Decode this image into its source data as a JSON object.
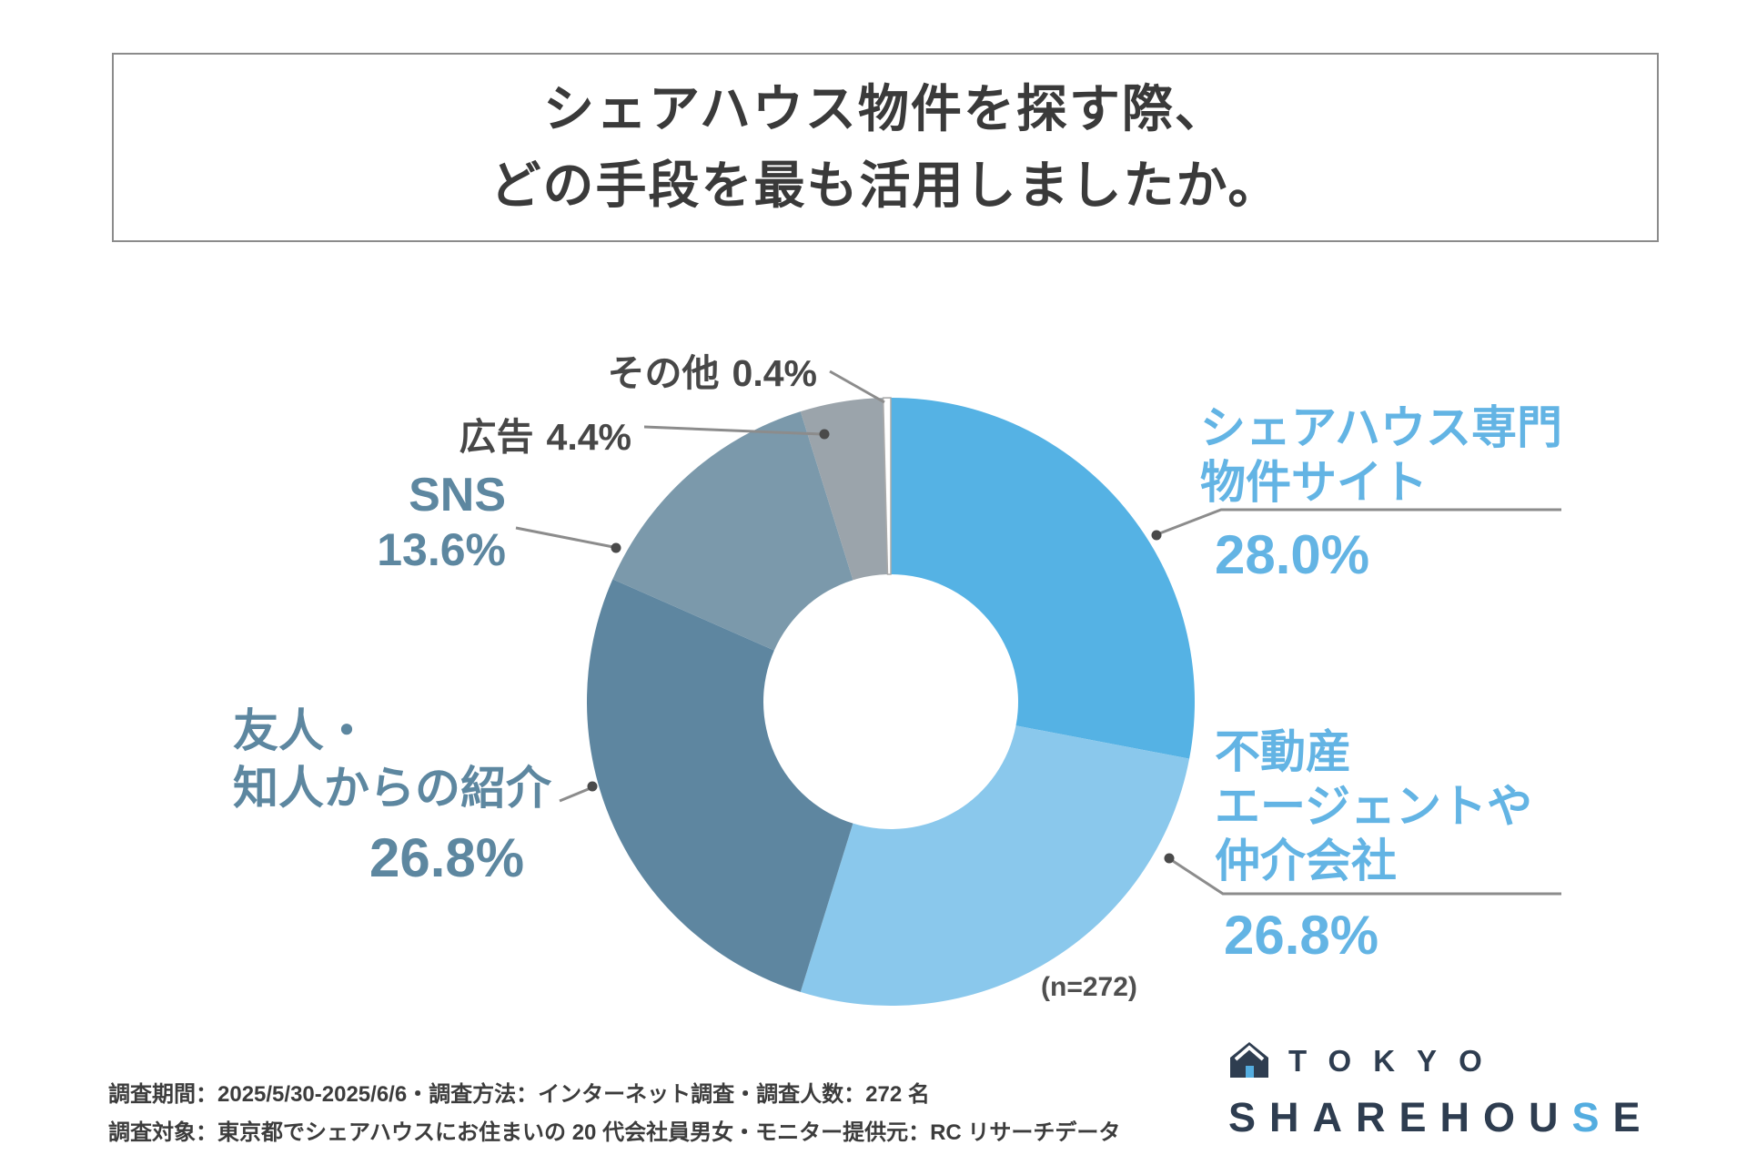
{
  "title": {
    "line1": "シェアハウス物件を探す際、",
    "line2": "どの手段を最も活用しましたか。"
  },
  "chart_data": {
    "type": "pie",
    "subtype": "donut",
    "title": "シェアハウス物件を探す際、どの手段を最も活用しましたか。",
    "unit": "%",
    "start_angle": "12-o-clock-clockwise",
    "sample_note": "(n=272)",
    "segments": [
      {
        "name": "シェアハウス専門物件サイト",
        "value": 28.0,
        "pct": "28.0%",
        "color": "#55b2e4",
        "label_lines": [
          "シェアハウス専門",
          "物件サイト"
        ]
      },
      {
        "name": "不動産エージェントや仲介会社",
        "value": 26.8,
        "pct": "26.8%",
        "color": "#8ac8ec",
        "label_lines": [
          "不動産",
          "エージェントや",
          "仲介会社"
        ]
      },
      {
        "name": "友人・知人からの紹介",
        "value": 26.8,
        "pct": "26.8%",
        "color": "#5e86a0",
        "label_lines": [
          "友人・",
          "知人からの紹介"
        ]
      },
      {
        "name": "SNS",
        "value": 13.6,
        "pct": "13.6%",
        "color": "#7b99ab",
        "label_lines": [
          "SNS"
        ]
      },
      {
        "name": "広告",
        "value": 4.4,
        "pct": "4.4%",
        "color": "#9ba4ab",
        "label_lines": [
          "広告"
        ]
      },
      {
        "name": "その他",
        "value": 0.4,
        "pct": "0.4%",
        "color": "#ffffff",
        "stroke": "#aaaaaa",
        "label_lines": [
          "その他"
        ]
      }
    ]
  },
  "palette": {
    "title": "#3a3a3a",
    "right_label": "#63b4e4",
    "left_label": "#5d87a0",
    "dark_label": "#474747",
    "leader": "#8c8c8c",
    "dot": "#4a4a4a",
    "footer": "#3c3c3c",
    "logo_navy": "#2e3d50",
    "logo_accent": "#54ade0"
  },
  "footer": {
    "line1": "調査期間：2025/5/30-2025/6/6・調査方法：インターネット調査・調査人数：272 名",
    "line2": "調査対象：東京都でシェアハウスにお住まいの 20 代会社員男女・モニター提供元：RC リサーチデータ"
  },
  "logo": {
    "brand_top": "TOKYO",
    "brand_pre": "SHAREHOU",
    "brand_accent": "S",
    "brand_post": "E"
  }
}
